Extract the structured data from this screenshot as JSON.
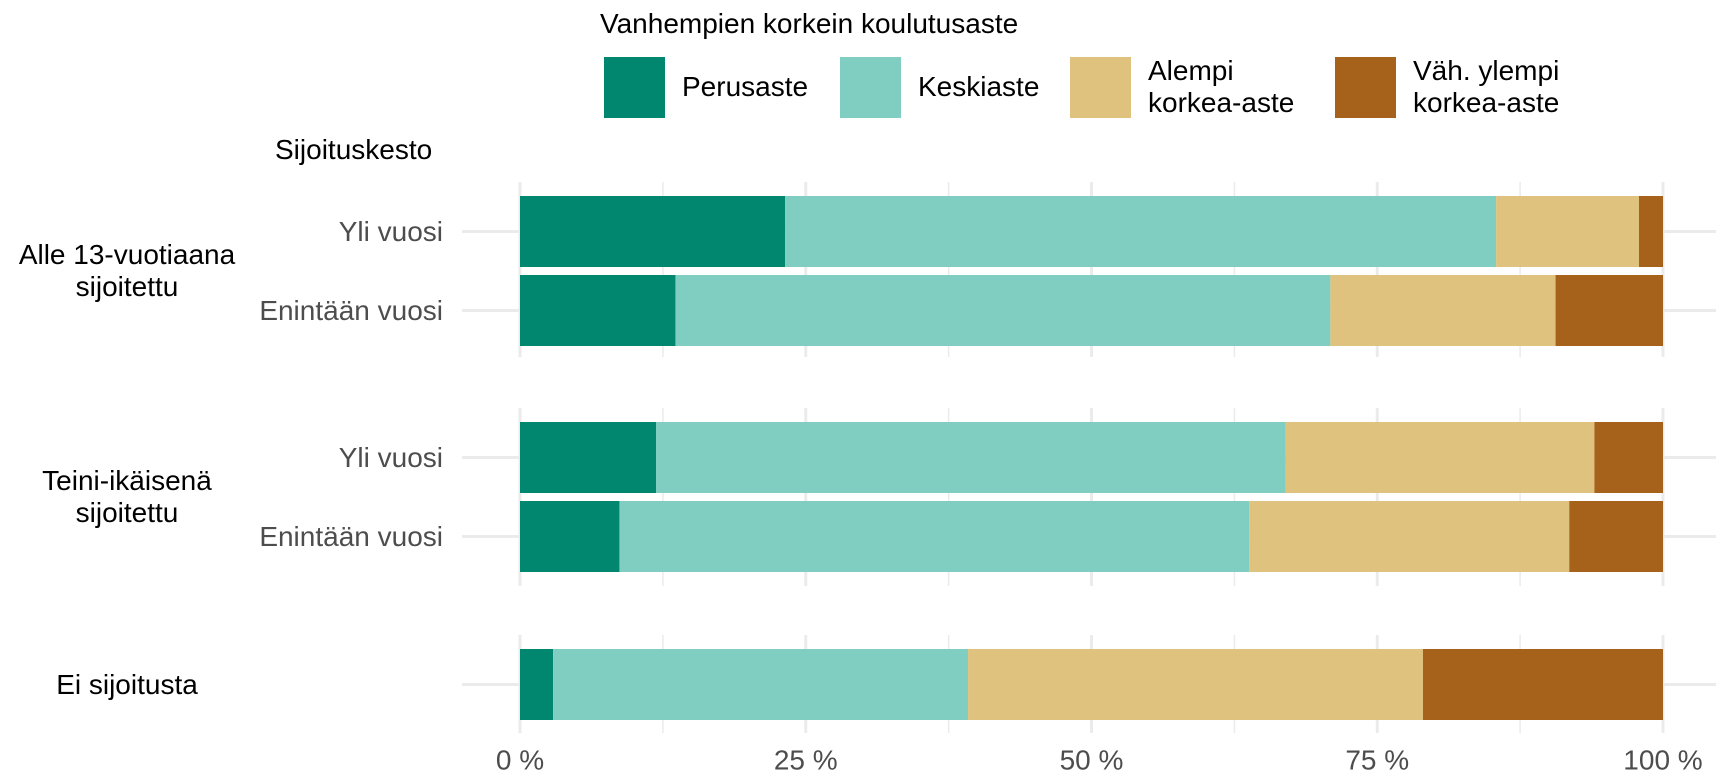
{
  "chart_data": {
    "type": "stacked_barh",
    "legend_title": "Vanhempien korkein koulutusaste",
    "y_title": "Sijoituskesto",
    "series": [
      {
        "name": "Perusaste",
        "color": "#01876f"
      },
      {
        "name": "Keskiaste",
        "color": "#80cdc1"
      },
      {
        "name": "Alempi\nkorkea-aste",
        "color": "#dfc27d"
      },
      {
        "name": "Väh. ylempi\nkorkea-aste",
        "color": "#a6611a"
      }
    ],
    "groups": [
      {
        "label": "Alle 13-vuotiaana\nsijoitettu",
        "categories": [
          "Yli vuosi",
          "Enintään vuosi"
        ],
        "values": [
          [
            23.2,
            62.2,
            12.5,
            2.1
          ],
          [
            13.6,
            57.3,
            19.7,
            9.4
          ]
        ]
      },
      {
        "label": "Teini-ikäisenä\nsijoitettu",
        "categories": [
          "Yli vuosi",
          "Enintään vuosi"
        ],
        "values": [
          [
            11.9,
            55.1,
            27.0,
            6.0
          ],
          [
            8.7,
            55.1,
            28.0,
            8.2
          ]
        ]
      },
      {
        "label": "Ei sijoitusta",
        "categories": [
          null
        ],
        "values": [
          [
            2.9,
            36.3,
            39.8,
            21.0
          ]
        ]
      }
    ],
    "xlim": [
      0,
      100
    ],
    "xticks": [
      {
        "value": 0,
        "label": "0 %"
      },
      {
        "value": 25,
        "label": "25 %"
      },
      {
        "value": 50,
        "label": "50 %"
      },
      {
        "value": 75,
        "label": "75 %"
      },
      {
        "value": 100,
        "label": "100 %"
      }
    ],
    "minor_xticks": [
      12.5,
      37.5,
      62.5,
      87.5
    ],
    "grid": true
  }
}
